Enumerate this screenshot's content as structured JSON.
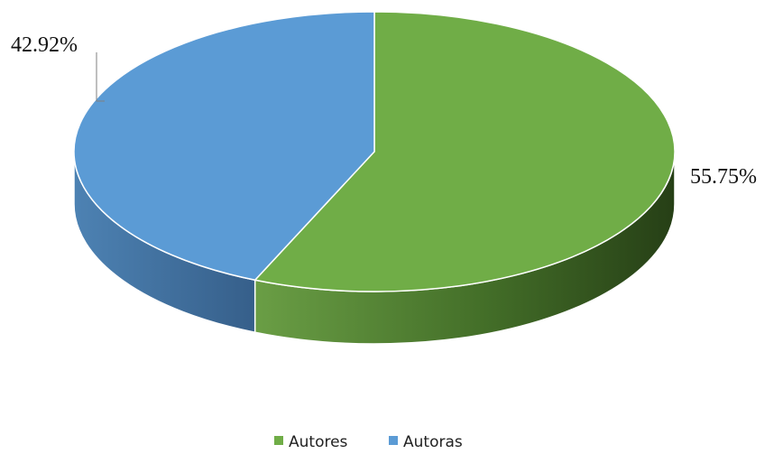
{
  "chart_data": {
    "type": "pie",
    "style": "3d",
    "title": "",
    "slices": [
      {
        "name": "Autores",
        "value": 55.75,
        "label": "55.75%",
        "color": "#70ad47",
        "side_color": "#3a5e22"
      },
      {
        "name": "Autoras",
        "value": 42.92,
        "label": "42.92%",
        "color": "#5b9bd5",
        "side_color": "#3f6f9e"
      }
    ],
    "legend": {
      "position": "bottom",
      "entries": [
        "Autores",
        "Autoras"
      ]
    }
  }
}
